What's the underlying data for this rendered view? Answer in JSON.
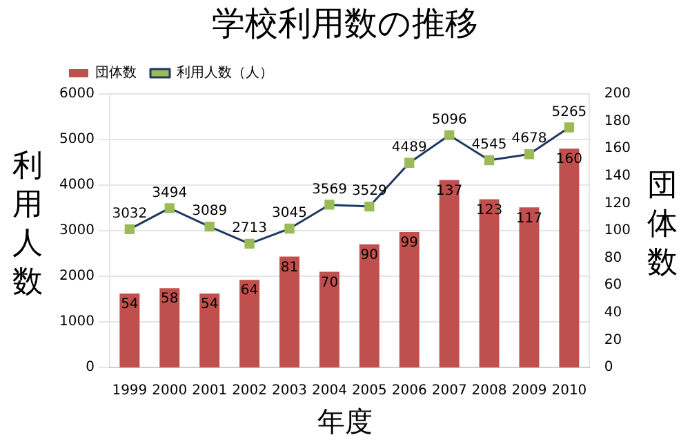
{
  "chart_data": {
    "type": "bar",
    "title": "学校利用数の推移",
    "xlabel": "年度",
    "ylabel": "利用人数",
    "y2label": "団体数",
    "categories": [
      "1999",
      "2000",
      "2001",
      "2002",
      "2003",
      "2004",
      "2005",
      "2006",
      "2007",
      "2008",
      "2009",
      "2010"
    ],
    "series": [
      {
        "name": "団体数",
        "type": "bar",
        "axis": "y2",
        "color": "#c0504d",
        "values": [
          54,
          58,
          54,
          64,
          81,
          70,
          90,
          99,
          137,
          123,
          117,
          160
        ]
      },
      {
        "name": "利用人数（人）",
        "type": "line",
        "color": "#9bbb59",
        "marker": "square",
        "values": [
          3032,
          3494,
          3089,
          2713,
          3045,
          3569,
          3529,
          4489,
          5096,
          4545,
          4678,
          5265
        ]
      }
    ],
    "ylim": [
      0,
      6000
    ],
    "yticks": [
      0,
      1000,
      2000,
      3000,
      4000,
      5000,
      6000
    ],
    "y2lim": [
      0,
      200
    ],
    "y2ticks": [
      0,
      20,
      40,
      60,
      80,
      100,
      120,
      140,
      160,
      180,
      200
    ],
    "grid": "y",
    "legend": "top left",
    "data_labels": true
  }
}
